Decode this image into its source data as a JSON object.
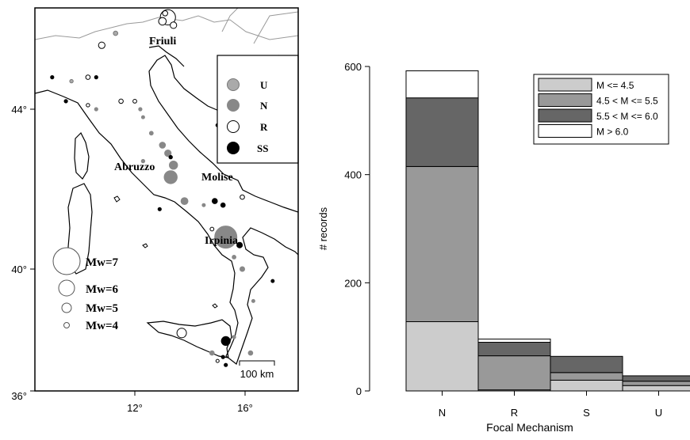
{
  "map": {
    "lat_ticks": [
      "44°",
      "40°",
      "36°"
    ],
    "lon_ticks": [
      "12°",
      "16°"
    ],
    "region_labels": {
      "friuli": "Friuli",
      "abruzzo": "Abruzzo",
      "molise": "Molise",
      "irpinia": "Irpinia"
    },
    "mechanism_legend": [
      {
        "label": "U",
        "color": "#aaaaaa"
      },
      {
        "label": "N",
        "color": "#888888"
      },
      {
        "label": "R",
        "color": "#ffffff"
      },
      {
        "label": "SS",
        "color": "#000000"
      }
    ],
    "magnitude_legend": [
      "Mw=7",
      "Mw=6",
      "Mw=5",
      "Mw=4"
    ],
    "scale_bar": "100 km",
    "events": [
      {
        "lon": 13.2,
        "lat": 46.3,
        "mw": 6.4,
        "mech": "R"
      },
      {
        "lon": 13.0,
        "lat": 46.2,
        "mw": 5.5,
        "mech": "R"
      },
      {
        "lon": 13.4,
        "lat": 46.1,
        "mw": 5.3,
        "mech": "R"
      },
      {
        "lon": 13.1,
        "lat": 46.4,
        "mw": 5.0,
        "mech": "R"
      },
      {
        "lon": 11.3,
        "lat": 45.9,
        "mw": 4.8,
        "mech": "U"
      },
      {
        "lon": 10.8,
        "lat": 45.6,
        "mw": 5.3,
        "mech": "R"
      },
      {
        "lon": 10.1,
        "lat": 46.7,
        "mw": 4.5,
        "mech": "N"
      },
      {
        "lon": 11.0,
        "lat": 46.9,
        "mw": 4.2,
        "mech": "SS"
      },
      {
        "lon": 9.0,
        "lat": 44.8,
        "mw": 4.4,
        "mech": "SS"
      },
      {
        "lon": 9.7,
        "lat": 44.7,
        "mw": 4.5,
        "mech": "U"
      },
      {
        "lon": 10.3,
        "lat": 44.8,
        "mw": 4.8,
        "mech": "R"
      },
      {
        "lon": 10.6,
        "lat": 44.8,
        "mw": 4.4,
        "mech": "SS"
      },
      {
        "lon": 9.5,
        "lat": 44.2,
        "mw": 4.4,
        "mech": "SS"
      },
      {
        "lon": 10.3,
        "lat": 44.1,
        "mw": 4.5,
        "mech": "R"
      },
      {
        "lon": 10.6,
        "lat": 44.0,
        "mw": 4.4,
        "mech": "N"
      },
      {
        "lon": 11.5,
        "lat": 44.2,
        "mw": 4.8,
        "mech": "R"
      },
      {
        "lon": 12.0,
        "lat": 44.2,
        "mw": 4.6,
        "mech": "R"
      },
      {
        "lon": 12.2,
        "lat": 44.0,
        "mw": 4.4,
        "mech": "N"
      },
      {
        "lon": 12.3,
        "lat": 43.8,
        "mw": 4.3,
        "mech": "N"
      },
      {
        "lon": 12.6,
        "lat": 43.4,
        "mw": 4.6,
        "mech": "N"
      },
      {
        "lon": 13.0,
        "lat": 43.1,
        "mw": 5.2,
        "mech": "N"
      },
      {
        "lon": 13.2,
        "lat": 42.9,
        "mw": 5.3,
        "mech": "N"
      },
      {
        "lon": 13.4,
        "lat": 42.6,
        "mw": 5.6,
        "mech": "N"
      },
      {
        "lon": 13.4,
        "lat": 42.3,
        "mw": 5.4,
        "mech": "N"
      },
      {
        "lon": 13.3,
        "lat": 42.8,
        "mw": 4.5,
        "mech": "SS"
      },
      {
        "lon": 13.3,
        "lat": 42.3,
        "mw": 6.2,
        "mech": "N"
      },
      {
        "lon": 12.3,
        "lat": 42.7,
        "mw": 4.5,
        "mech": "N"
      },
      {
        "lon": 13.8,
        "lat": 41.7,
        "mw": 5.4,
        "mech": "N"
      },
      {
        "lon": 15.0,
        "lat": 43.6,
        "mw": 4.4,
        "mech": "SS"
      },
      {
        "lon": 14.9,
        "lat": 41.7,
        "mw": 5.0,
        "mech": "SS"
      },
      {
        "lon": 15.2,
        "lat": 41.6,
        "mw": 4.8,
        "mech": "SS"
      },
      {
        "lon": 14.5,
        "lat": 41.6,
        "mw": 4.2,
        "mech": "N"
      },
      {
        "lon": 15.9,
        "lat": 41.8,
        "mw": 4.8,
        "mech": "R"
      },
      {
        "lon": 12.9,
        "lat": 41.5,
        "mw": 4.4,
        "mech": "SS"
      },
      {
        "lon": 15.3,
        "lat": 40.8,
        "mw": 6.9,
        "mech": "N"
      },
      {
        "lon": 15.5,
        "lat": 40.7,
        "mw": 5.0,
        "mech": "N"
      },
      {
        "lon": 15.8,
        "lat": 40.6,
        "mw": 5.1,
        "mech": "SS"
      },
      {
        "lon": 15.6,
        "lat": 40.3,
        "mw": 4.6,
        "mech": "N"
      },
      {
        "lon": 15.9,
        "lat": 40.0,
        "mw": 4.9,
        "mech": "N"
      },
      {
        "lon": 14.8,
        "lat": 41.0,
        "mw": 4.6,
        "mech": "R"
      },
      {
        "lon": 16.3,
        "lat": 39.2,
        "mw": 4.1,
        "mech": "N"
      },
      {
        "lon": 17.0,
        "lat": 39.7,
        "mw": 4.3,
        "mech": "SS"
      },
      {
        "lon": 13.7,
        "lat": 38.4,
        "mw": 5.8,
        "mech": "R"
      },
      {
        "lon": 15.3,
        "lat": 38.2,
        "mw": 5.7,
        "mech": "SS"
      },
      {
        "lon": 15.6,
        "lat": 38.3,
        "mw": 4.4,
        "mech": "N"
      },
      {
        "lon": 14.8,
        "lat": 37.9,
        "mw": 4.8,
        "mech": "N"
      },
      {
        "lon": 16.2,
        "lat": 37.9,
        "mw": 4.8,
        "mech": "N"
      },
      {
        "lon": 15.2,
        "lat": 37.8,
        "mw": 4.4,
        "mech": "SS"
      },
      {
        "lon": 15.3,
        "lat": 37.6,
        "mw": 4.4,
        "mech": "SS"
      },
      {
        "lon": 15.0,
        "lat": 37.7,
        "mw": 4.2,
        "mech": "R"
      }
    ]
  },
  "chart_data": {
    "type": "bar",
    "stacked": true,
    "categories": [
      "N",
      "R",
      "S",
      "U"
    ],
    "xlabel": "Focal Mechanism",
    "ylabel": "# records",
    "ylim": [
      0,
      600
    ],
    "yticks": [
      0,
      200,
      400,
      600
    ],
    "legend_position": "top-right",
    "series": [
      {
        "name": "M <= 4.5",
        "color": "#cccccc",
        "values": [
          128,
          2,
          20,
          10
        ]
      },
      {
        "name": "4.5 < M <= 5.5",
        "color": "#999999",
        "values": [
          287,
          63,
          14,
          8
        ]
      },
      {
        "name": "5.5 < M <= 6.0",
        "color": "#666666",
        "values": [
          127,
          25,
          30,
          10
        ]
      },
      {
        "name": "M > 6.0",
        "color": "#ffffff",
        "values": [
          50,
          6,
          0,
          0
        ]
      }
    ]
  }
}
